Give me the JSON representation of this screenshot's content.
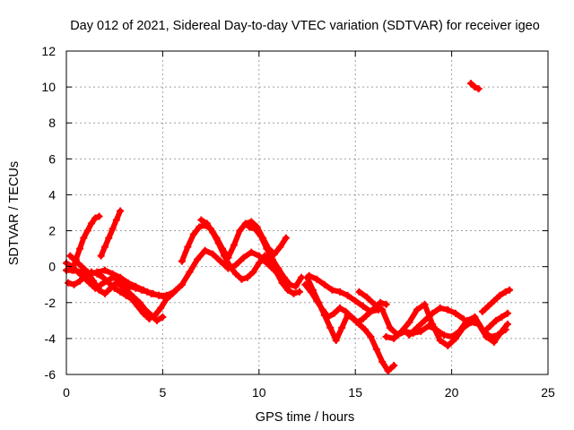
{
  "chart_data": {
    "type": "scatter",
    "title": "Day 012 of 2021, Sidereal Day-to-day VTEC variation (SDTVAR) for receiver igeo",
    "xlabel": "GPS time / hours",
    "ylabel": "SDTVAR / TECUs",
    "xlim": [
      0,
      25
    ],
    "ylim": [
      -6,
      12
    ],
    "xticks": [
      "0",
      "5",
      "10",
      "15",
      "20",
      "25"
    ],
    "yticks": [
      "-6",
      "-4",
      "-2",
      "0",
      "2",
      "4",
      "6",
      "8",
      "10",
      "12"
    ],
    "grid": true,
    "marker": "plus",
    "series_color": "#ff0000",
    "series": [
      {
        "name": "track-a",
        "x": [
          0.0,
          0.3,
          0.6,
          0.9,
          1.2,
          1.5,
          1.8,
          2.1,
          2.4,
          2.7,
          3.0,
          3.3,
          3.6,
          3.9,
          4.2,
          4.5,
          4.8,
          5.1,
          5.4,
          5.7,
          6.0
        ],
        "y": [
          0.2,
          0.0,
          -0.3,
          -0.6,
          -0.9,
          -1.2,
          -1.0,
          -0.8,
          -0.6,
          -0.7,
          -0.9,
          -1.1,
          -1.2,
          -1.3,
          -1.4,
          -1.5,
          -1.6,
          -1.7,
          -1.6,
          -1.3,
          -1.0
        ]
      },
      {
        "name": "track-b",
        "x": [
          0.1,
          0.4,
          0.7,
          1.0,
          1.3,
          1.6,
          1.9,
          2.2,
          2.5,
          2.8,
          3.1,
          3.4,
          3.7,
          4.0,
          4.3,
          4.6,
          4.9,
          5.2,
          5.5
        ],
        "y": [
          -0.9,
          -1.0,
          -0.8,
          -0.5,
          -0.3,
          -0.4,
          -0.6,
          -0.9,
          -1.2,
          -1.4,
          -1.6,
          -1.8,
          -2.2,
          -2.6,
          -2.9,
          -2.7,
          -2.3,
          -1.8,
          -1.5
        ]
      },
      {
        "name": "track-c",
        "x": [
          0.2,
          0.5,
          0.8,
          1.1,
          1.4,
          1.7,
          2.0,
          2.3,
          2.6,
          2.9,
          3.2,
          3.5,
          3.8,
          4.1,
          4.4,
          4.7,
          5.0
        ],
        "y": [
          0.6,
          0.3,
          0.0,
          -0.3,
          -0.8,
          -1.3,
          -1.5,
          -1.2,
          -0.9,
          -1.1,
          -1.4,
          -1.7,
          -2.0,
          -2.4,
          -2.7,
          -3.0,
          -2.8
        ]
      },
      {
        "name": "track-d",
        "x": [
          0.3,
          0.5,
          0.7,
          0.9,
          1.1,
          1.3,
          1.5,
          1.7
        ],
        "y": [
          -0.2,
          0.4,
          1.0,
          1.6,
          2.0,
          2.4,
          2.7,
          2.8
        ]
      },
      {
        "name": "track-e",
        "x": [
          1.8,
          2.0,
          2.2,
          2.4,
          2.6,
          2.8
        ],
        "y": [
          0.6,
          1.1,
          1.6,
          2.1,
          2.6,
          3.1
        ]
      },
      {
        "name": "track-f",
        "x": [
          0.0,
          0.4,
          0.8,
          1.2,
          1.6,
          2.0,
          2.4,
          2.8,
          3.2,
          3.6,
          4.0,
          4.4,
          4.8,
          5.2,
          5.6,
          6.0,
          6.4,
          6.8,
          7.2,
          7.6,
          8.0,
          8.4,
          8.8,
          9.2,
          9.6,
          10.0,
          10.4,
          10.8,
          11.2
        ],
        "y": [
          -0.2,
          -0.2,
          -0.3,
          -0.4,
          -0.3,
          -0.2,
          -0.4,
          -0.6,
          -0.9,
          -1.1,
          -1.3,
          -1.5,
          -1.6,
          -1.6,
          -1.4,
          -1.0,
          -0.3,
          0.4,
          0.9,
          0.7,
          0.3,
          -0.1,
          0.1,
          0.5,
          0.8,
          0.6,
          0.2,
          -0.2,
          -0.5
        ]
      },
      {
        "name": "track-g",
        "x": [
          6.0,
          6.3,
          6.6,
          6.9,
          7.2,
          7.5,
          7.8,
          8.1,
          8.4,
          8.7,
          9.0,
          9.3,
          9.6,
          9.9,
          10.2,
          10.5,
          10.8,
          11.1,
          11.4
        ],
        "y": [
          0.3,
          1.1,
          1.8,
          2.2,
          2.3,
          2.1,
          1.6,
          1.0,
          0.5,
          1.2,
          2.0,
          2.4,
          2.5,
          2.2,
          1.6,
          1.0,
          0.7,
          1.1,
          1.6
        ]
      },
      {
        "name": "track-h",
        "x": [
          7.0,
          7.3,
          7.6,
          7.9,
          8.2,
          8.5,
          8.8,
          9.1,
          9.4,
          9.7,
          10.0,
          10.3,
          10.6,
          10.9,
          11.2,
          11.5,
          11.8,
          12.1
        ],
        "y": [
          2.6,
          2.4,
          1.9,
          1.3,
          0.6,
          0.0,
          -0.4,
          -0.7,
          -0.6,
          -0.3,
          0.2,
          0.6,
          0.3,
          -0.3,
          -0.9,
          -1.3,
          -1.5,
          -1.4
        ]
      },
      {
        "name": "track-i",
        "x": [
          9.5,
          9.8,
          10.1,
          10.4,
          10.7,
          11.0,
          11.3,
          11.6,
          11.9,
          12.2
        ],
        "y": [
          2.2,
          2.1,
          1.7,
          1.0,
          0.4,
          -0.1,
          -0.6,
          -1.0,
          -1.1,
          -0.6
        ]
      },
      {
        "name": "track-j",
        "x": [
          12.5,
          12.8,
          13.1,
          13.4,
          13.7,
          14.0,
          14.3,
          14.6,
          14.9,
          15.2,
          15.5,
          15.8,
          16.1,
          16.4,
          16.7,
          17.0
        ],
        "y": [
          -0.6,
          -1.3,
          -2.0,
          -2.7,
          -3.4,
          -4.1,
          -3.4,
          -2.7,
          -2.9,
          -3.2,
          -3.5,
          -3.9,
          -4.6,
          -5.3,
          -5.8,
          -5.5
        ]
      },
      {
        "name": "track-k",
        "x": [
          12.4,
          12.7,
          13.0,
          13.3,
          13.6,
          13.9,
          14.2,
          14.5,
          14.8,
          15.1,
          15.4,
          15.7,
          16.0,
          16.3,
          16.6
        ],
        "y": [
          -1.0,
          -1.4,
          -1.9,
          -2.4,
          -2.8,
          -2.6,
          -2.3,
          -2.5,
          -2.8,
          -3.1,
          -2.9,
          -2.6,
          -2.3,
          -2.0,
          -2.1
        ]
      },
      {
        "name": "track-l",
        "x": [
          12.6,
          13.0,
          13.4,
          13.8,
          14.2,
          14.6,
          15.0,
          15.4,
          15.8,
          16.2
        ],
        "y": [
          -0.5,
          -0.7,
          -1.0,
          -1.3,
          -1.4,
          -1.6,
          -1.9,
          -2.2,
          -2.5,
          -2.4
        ]
      },
      {
        "name": "track-m",
        "x": [
          15.2,
          15.6,
          16.0,
          16.4,
          16.8,
          17.2,
          17.6,
          18.0,
          18.4,
          18.8,
          19.2,
          19.6,
          20.0,
          20.4,
          20.8,
          21.2,
          21.6,
          22.0,
          22.4,
          22.8
        ],
        "y": [
          -1.4,
          -1.7,
          -2.1,
          -2.4,
          -3.4,
          -3.8,
          -3.6,
          -3.7,
          -3.6,
          -3.3,
          -3.5,
          -3.8,
          -3.9,
          -3.6,
          -3.0,
          -2.8,
          -3.5,
          -3.9,
          -3.8,
          -3.5
        ]
      },
      {
        "name": "track-n",
        "x": [
          16.6,
          17.0,
          17.4,
          17.8,
          18.2,
          18.6,
          19.0,
          19.4,
          19.8,
          20.2,
          20.6,
          21.0,
          21.4,
          21.8,
          22.2,
          22.6,
          22.9
        ],
        "y": [
          -3.9,
          -4.0,
          -3.6,
          -3.1,
          -2.4,
          -2.1,
          -3.2,
          -4.1,
          -4.4,
          -4.0,
          -3.4,
          -3.1,
          -3.2,
          -3.9,
          -4.2,
          -3.6,
          -3.2
        ]
      },
      {
        "name": "track-o",
        "x": [
          17.8,
          18.2,
          18.6,
          19.0,
          19.4,
          19.8,
          20.2,
          20.6
        ],
        "y": [
          -3.8,
          -3.4,
          -3.0,
          -2.6,
          -2.3,
          -2.4,
          -2.6,
          -2.9
        ]
      },
      {
        "name": "track-p",
        "x": [
          21.6,
          21.9,
          22.2,
          22.5,
          22.8,
          23.0
        ],
        "y": [
          -2.5,
          -2.2,
          -1.9,
          -1.6,
          -1.4,
          -1.3
        ]
      },
      {
        "name": "track-q",
        "x": [
          21.7,
          22.0,
          22.3,
          22.6,
          22.9
        ],
        "y": [
          -3.6,
          -3.3,
          -3.0,
          -2.8,
          -2.6
        ]
      },
      {
        "name": "track-r",
        "x": [
          21.0,
          21.2,
          21.4
        ],
        "y": [
          10.2,
          10.0,
          9.9
        ]
      }
    ]
  }
}
